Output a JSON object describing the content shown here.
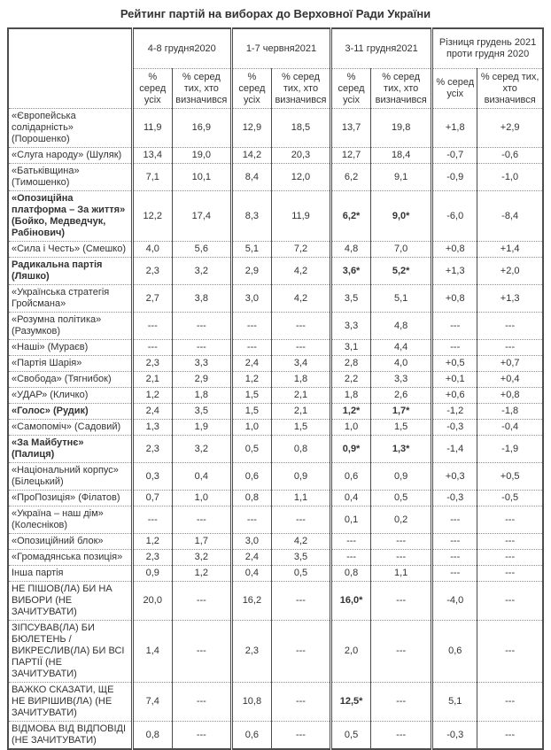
{
  "chart_data": {
    "type": "table",
    "title": "Рейтинг партій на виборах до Верховної Ради України",
    "column_groups": [
      "4-8 грудня2020",
      "1-7 червня2021",
      "3-11 грудня2021",
      "Різниця грудень 2021 проти грудня 2020"
    ],
    "sub_columns": [
      "% серед усіх",
      "% серед тих, хто визначився"
    ],
    "rows": [
      {
        "name": "«Європейська солідарність» (Порошенко)",
        "bold_name": false,
        "values": [
          "11,9",
          "16,9",
          "12,9",
          "18,5",
          "13,7",
          "19,8",
          "+1,8",
          "+2,9"
        ],
        "bold_cols": []
      },
      {
        "name": "«Слуга народу» (Шуляк)",
        "bold_name": false,
        "values": [
          "13,4",
          "19,0",
          "14,2",
          "20,3",
          "12,7",
          "18,4",
          "-0,7",
          "-0,6"
        ],
        "bold_cols": []
      },
      {
        "name": "«Батьківщина» (Тимошенко)",
        "bold_name": false,
        "values": [
          "7,1",
          "10,1",
          "8,4",
          "12,0",
          "6,2",
          "9,1",
          "-0,9",
          "-1,0"
        ],
        "bold_cols": []
      },
      {
        "name": "«Опозиційна платформа – За життя» (Бойко, Медведчук, Рабінович)",
        "bold_name": true,
        "values": [
          "12,2",
          "17,4",
          "8,3",
          "11,9",
          "6,2*",
          "9,0*",
          "-6,0",
          "-8,4"
        ],
        "bold_cols": [
          4,
          5
        ]
      },
      {
        "name": "«Сила і Честь» (Смешко)",
        "bold_name": false,
        "values": [
          "4,0",
          "5,6",
          "5,1",
          "7,2",
          "4,8",
          "7,0",
          "+0,8",
          "+1,4"
        ],
        "bold_cols": []
      },
      {
        "name": "Радикальна партія (Ляшко)",
        "bold_name": true,
        "values": [
          "2,3",
          "3,2",
          "2,9",
          "4,2",
          "3,6*",
          "5,2*",
          "+1,3",
          "+2,0"
        ],
        "bold_cols": [
          4,
          5
        ]
      },
      {
        "name": "«Українська стратегія Гройсмана»",
        "bold_name": false,
        "values": [
          "2,7",
          "3,8",
          "3,0",
          "4,2",
          "3,5",
          "5,1",
          "+0,8",
          "+1,3"
        ],
        "bold_cols": []
      },
      {
        "name": "«Розумна політика» (Разумков)",
        "bold_name": false,
        "values": [
          "---",
          "---",
          "---",
          "---",
          "3,3",
          "4,8",
          "---",
          "---"
        ],
        "bold_cols": []
      },
      {
        "name": "«Наші» (Мураєв)",
        "bold_name": false,
        "values": [
          "---",
          "---",
          "---",
          "---",
          "3,1",
          "4,4",
          "---",
          "---"
        ],
        "bold_cols": []
      },
      {
        "name": "«Партія Шарія»",
        "bold_name": false,
        "values": [
          "2,3",
          "3,3",
          "2,4",
          "3,4",
          "2,8",
          "4,0",
          "+0,5",
          "+0,7"
        ],
        "bold_cols": []
      },
      {
        "name": "«Свобода» (Тягнибок)",
        "bold_name": false,
        "values": [
          "2,1",
          "2,9",
          "1,2",
          "1,8",
          "2,2",
          "3,3",
          "+0,1",
          "+0,4"
        ],
        "bold_cols": []
      },
      {
        "name": "«УДАР» (Кличко)",
        "bold_name": false,
        "values": [
          "1,2",
          "1,8",
          "1,5",
          "2,1",
          "1,8",
          "2,6",
          "+0,6",
          "+0,8"
        ],
        "bold_cols": []
      },
      {
        "name": "«Голос» (Рудик)",
        "bold_name": true,
        "values": [
          "2,4",
          "3,5",
          "1,5",
          "2,1",
          "1,2*",
          "1,7*",
          "-1,2",
          "-1,8"
        ],
        "bold_cols": [
          4,
          5
        ]
      },
      {
        "name": "«Самопоміч» (Садовий)",
        "bold_name": false,
        "values": [
          "1,3",
          "1,9",
          "1,0",
          "1,5",
          "1,0",
          "1,5",
          "-0,3",
          "-0,4"
        ],
        "bold_cols": []
      },
      {
        "name": "«За Майбутнє» (Палиця)",
        "bold_name": true,
        "values": [
          "2,3",
          "3,2",
          "0,5",
          "0,8",
          "0,9*",
          "1,3*",
          "-1,4",
          "-1,9"
        ],
        "bold_cols": [
          4,
          5
        ]
      },
      {
        "name": "«Національний корпус» (Білецький)",
        "bold_name": false,
        "values": [
          "0,3",
          "0,4",
          "0,6",
          "0,9",
          "0,6",
          "0,9",
          "+0,3",
          "+0,5"
        ],
        "bold_cols": []
      },
      {
        "name": "«ПроПозиція» (Філатов)",
        "bold_name": false,
        "values": [
          "0,7",
          "1,0",
          "0,8",
          "1,1",
          "0,4",
          "0,5",
          "-0,3",
          "-0,5"
        ],
        "bold_cols": []
      },
      {
        "name": "«Україна – наш дім» (Колесніков)",
        "bold_name": false,
        "values": [
          "---",
          "---",
          "---",
          "---",
          "0,1",
          "0,2",
          "---",
          "---"
        ],
        "bold_cols": []
      },
      {
        "name": "«Опозиційний блок»",
        "bold_name": false,
        "values": [
          "1,2",
          "1,7",
          "3,0",
          "4,2",
          "---",
          "---",
          "---",
          "---"
        ],
        "bold_cols": []
      },
      {
        "name": "«Громадянська позиція»",
        "bold_name": false,
        "values": [
          "2,3",
          "3,2",
          "2,4",
          "3,5",
          "---",
          "---",
          "---",
          "---"
        ],
        "bold_cols": []
      },
      {
        "name": "Інша партія",
        "bold_name": false,
        "values": [
          "0,9",
          "1,2",
          "0,4",
          "0,5",
          "0,8",
          "1,1",
          "---",
          "---"
        ],
        "bold_cols": []
      },
      {
        "name": "НЕ ПІШОВ(ЛА) БИ НА ВИБОРИ (НЕ ЗАЧИТУВАТИ)",
        "bold_name": false,
        "values": [
          "20,0",
          "---",
          "16,2",
          "---",
          "16,0*",
          "---",
          "-4,0",
          "---"
        ],
        "bold_cols": [
          4
        ]
      },
      {
        "name": "ЗІПСУВАВ(ЛА) БИ БЮЛЕТЕНЬ / ВИКРЕСЛИВ(ЛА) БИ ВСІ ПАРТІЇ (НЕ ЗАЧИТУВАТИ)",
        "bold_name": false,
        "values": [
          "1,4",
          "---",
          "2,3",
          "---",
          "2,0",
          "---",
          "0,6",
          "---"
        ],
        "bold_cols": []
      },
      {
        "name": "ВАЖКО СКАЗАТИ, ЩЕ НЕ ВИРІШИВ(ЛА) (НЕ ЗАЧИТУВАТИ)",
        "bold_name": false,
        "values": [
          "7,4",
          "---",
          "10,8",
          "---",
          "12,5*",
          "---",
          "5,1",
          "---"
        ],
        "bold_cols": [
          4
        ]
      },
      {
        "name": "ВІДМОВА ВІД ВІДПОВІДІ (НЕ ЗАЧИТУВАТИ)",
        "bold_name": false,
        "values": [
          "0,8",
          "---",
          "0,6",
          "---",
          "0,5",
          "---",
          "-0,3",
          "---"
        ],
        "bold_cols": []
      }
    ]
  }
}
